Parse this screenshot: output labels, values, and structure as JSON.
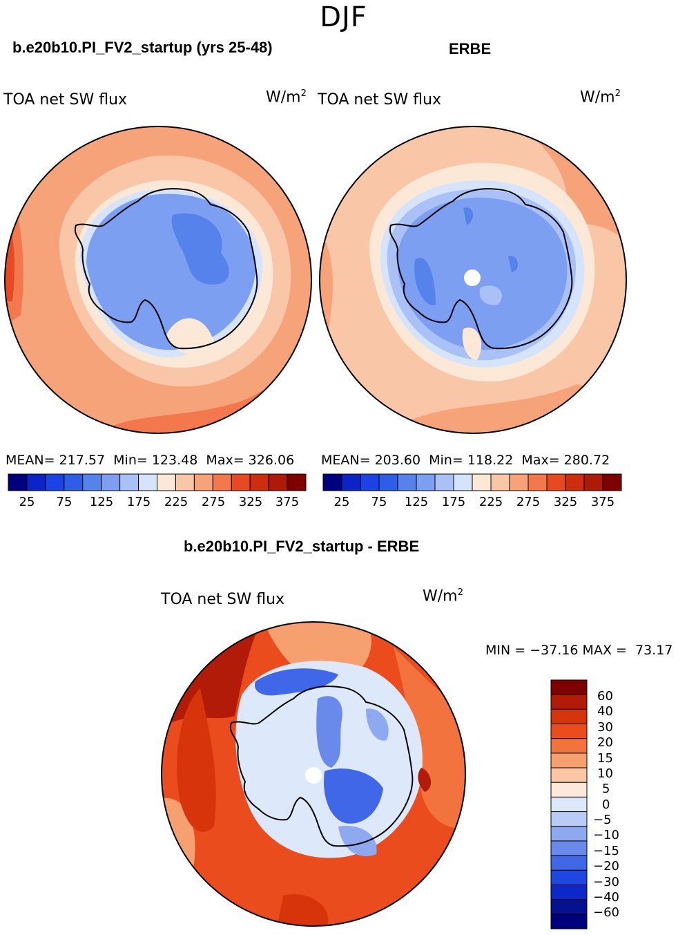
{
  "figure": {
    "season": "DJF"
  },
  "chart_data": [
    {
      "type": "heatmap",
      "panel": "model",
      "title": "b.e20b10.PI_FV2_startup (yrs 25-48)",
      "variable": "TOA net SW flux",
      "units_base": "W/m",
      "units_exp": "2",
      "stats": {
        "mean_label": "MEAN=",
        "mean": "217.57",
        "min_label": "Min=",
        "min": "123.48",
        "max_label": "Max=",
        "max": "326.06"
      },
      "colorbar": {
        "colors": [
          "#00007f",
          "#0a24c8",
          "#1d43e6",
          "#2e5de8",
          "#5682ec",
          "#7d9ff1",
          "#a9c1f7",
          "#d6e4fb",
          "#fce8d6",
          "#f9c6a7",
          "#f7a37a",
          "#f3784d",
          "#e74a22",
          "#cf2d0f",
          "#ad1a08",
          "#7f0000"
        ],
        "tick_labels": [
          "25",
          "75",
          "125",
          "175",
          "225",
          "275",
          "325",
          "375"
        ]
      }
    },
    {
      "type": "heatmap",
      "panel": "obs",
      "title": "ERBE",
      "variable": "TOA net SW flux",
      "units_base": "W/m",
      "units_exp": "2",
      "stats": {
        "mean_label": "MEAN=",
        "mean": "203.60",
        "min_label": "Min=",
        "min": "118.22",
        "max_label": "Max=",
        "max": "280.72"
      },
      "colorbar": {
        "colors": [
          "#00007f",
          "#0a24c8",
          "#1d43e6",
          "#2e5de8",
          "#5682ec",
          "#7d9ff1",
          "#a9c1f7",
          "#d6e4fb",
          "#fce8d6",
          "#f9c6a7",
          "#f7a37a",
          "#f3784d",
          "#e74a22",
          "#cf2d0f",
          "#ad1a08",
          "#7f0000"
        ],
        "tick_labels": [
          "25",
          "75",
          "125",
          "175",
          "225",
          "275",
          "325",
          "375"
        ]
      }
    },
    {
      "type": "heatmap",
      "panel": "difference",
      "title": "b.e20b10.PI_FV2_startup - ERBE",
      "variable": "TOA net SW flux",
      "units_base": "W/m",
      "units_exp": "2",
      "stats_text": "MIN = −37.16 MAX =  73.17",
      "colorbar": {
        "colors_top_to_bottom": [
          "#7f0000",
          "#b21b07",
          "#d8340c",
          "#ea4c1d",
          "#f3733f",
          "#f7a06f",
          "#fbc6a6",
          "#fde8d9",
          "#dde8fa",
          "#b8ccf6",
          "#8fa9f0",
          "#6a8aeb",
          "#3f67e7",
          "#1f45e3",
          "#0c28c8",
          "#05128f",
          "#00007f"
        ],
        "tick_labels": [
          "60",
          "40",
          "30",
          "20",
          "15",
          "10",
          "5",
          "0",
          "−5",
          "−10",
          "−15",
          "−20",
          "−30",
          "−40",
          "−60"
        ]
      }
    }
  ]
}
